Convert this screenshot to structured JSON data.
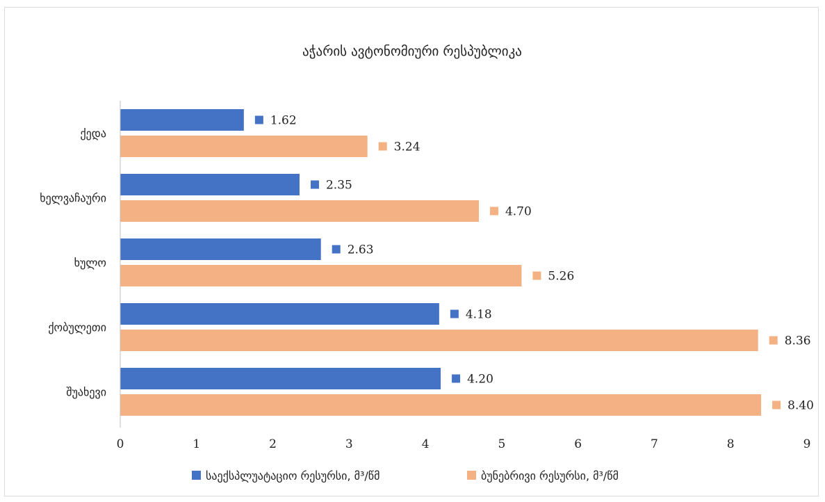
{
  "chart_data": {
    "type": "bar",
    "orientation": "horizontal",
    "title": "აჭარის ავტონომიური რესპუბლიკა",
    "categories": [
      "ქედა",
      "ხელვაჩაური",
      "ხულო",
      "ქობულეთი",
      "შუახევი"
    ],
    "series": [
      {
        "name": "საექსპლუატაციო რესურსი, მ³/წმ",
        "color": "#4472c4",
        "values": [
          1.62,
          2.35,
          2.63,
          4.18,
          4.2
        ],
        "labels": [
          "1.62",
          "2.35",
          "2.63",
          "4.18",
          "4.20"
        ]
      },
      {
        "name": "ბუნებრივი რესურსი, მ³/წმ",
        "color": "#f4b183",
        "values": [
          3.24,
          4.7,
          5.26,
          8.36,
          8.4
        ],
        "labels": [
          "3.24",
          "4.70",
          "5.26",
          "8.36",
          "8.40"
        ]
      }
    ],
    "xlim": [
      0,
      9
    ],
    "xticks": [
      "0",
      "1",
      "2",
      "3",
      "4",
      "5",
      "6",
      "7",
      "8",
      "9"
    ],
    "xlabel": "",
    "ylabel": "",
    "grid": false,
    "legend": "bottom"
  }
}
